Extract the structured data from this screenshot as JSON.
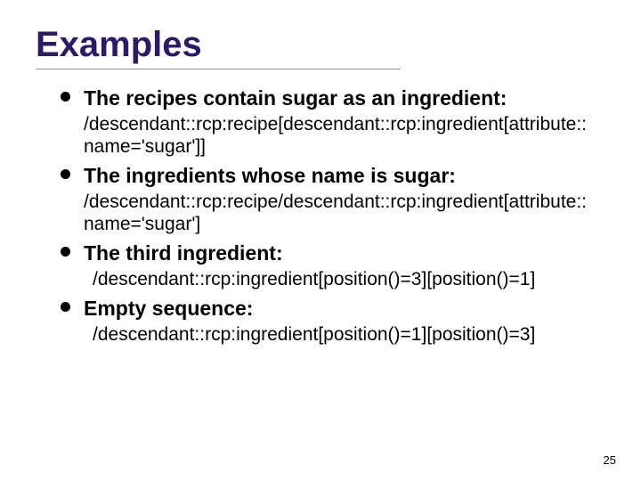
{
  "slide": {
    "title": "Examples",
    "title_color": "#2d1a66",
    "background_color": "#ffffff",
    "page_number": "25",
    "items": [
      {
        "heading": "The recipes contain sugar as an ingredient:",
        "code": "/descendant::rcp:recipe[descendant::rcp:ingredient[attribute::name='sugar']]",
        "code_indent": false
      },
      {
        "heading": "The ingredients whose name is sugar:",
        "code": "/descendant::rcp:recipe/descendant::rcp:ingredient[attribute::name='sugar']",
        "code_indent": false
      },
      {
        "heading": "The third ingredient:",
        "code": "/descendant::rcp:ingredient[position()=3][position()=1]",
        "code_indent": true
      },
      {
        "heading": "Empty sequence:",
        "code": "/descendant::rcp:ingredient[position()=1][position()=3]",
        "code_indent": true
      }
    ]
  }
}
